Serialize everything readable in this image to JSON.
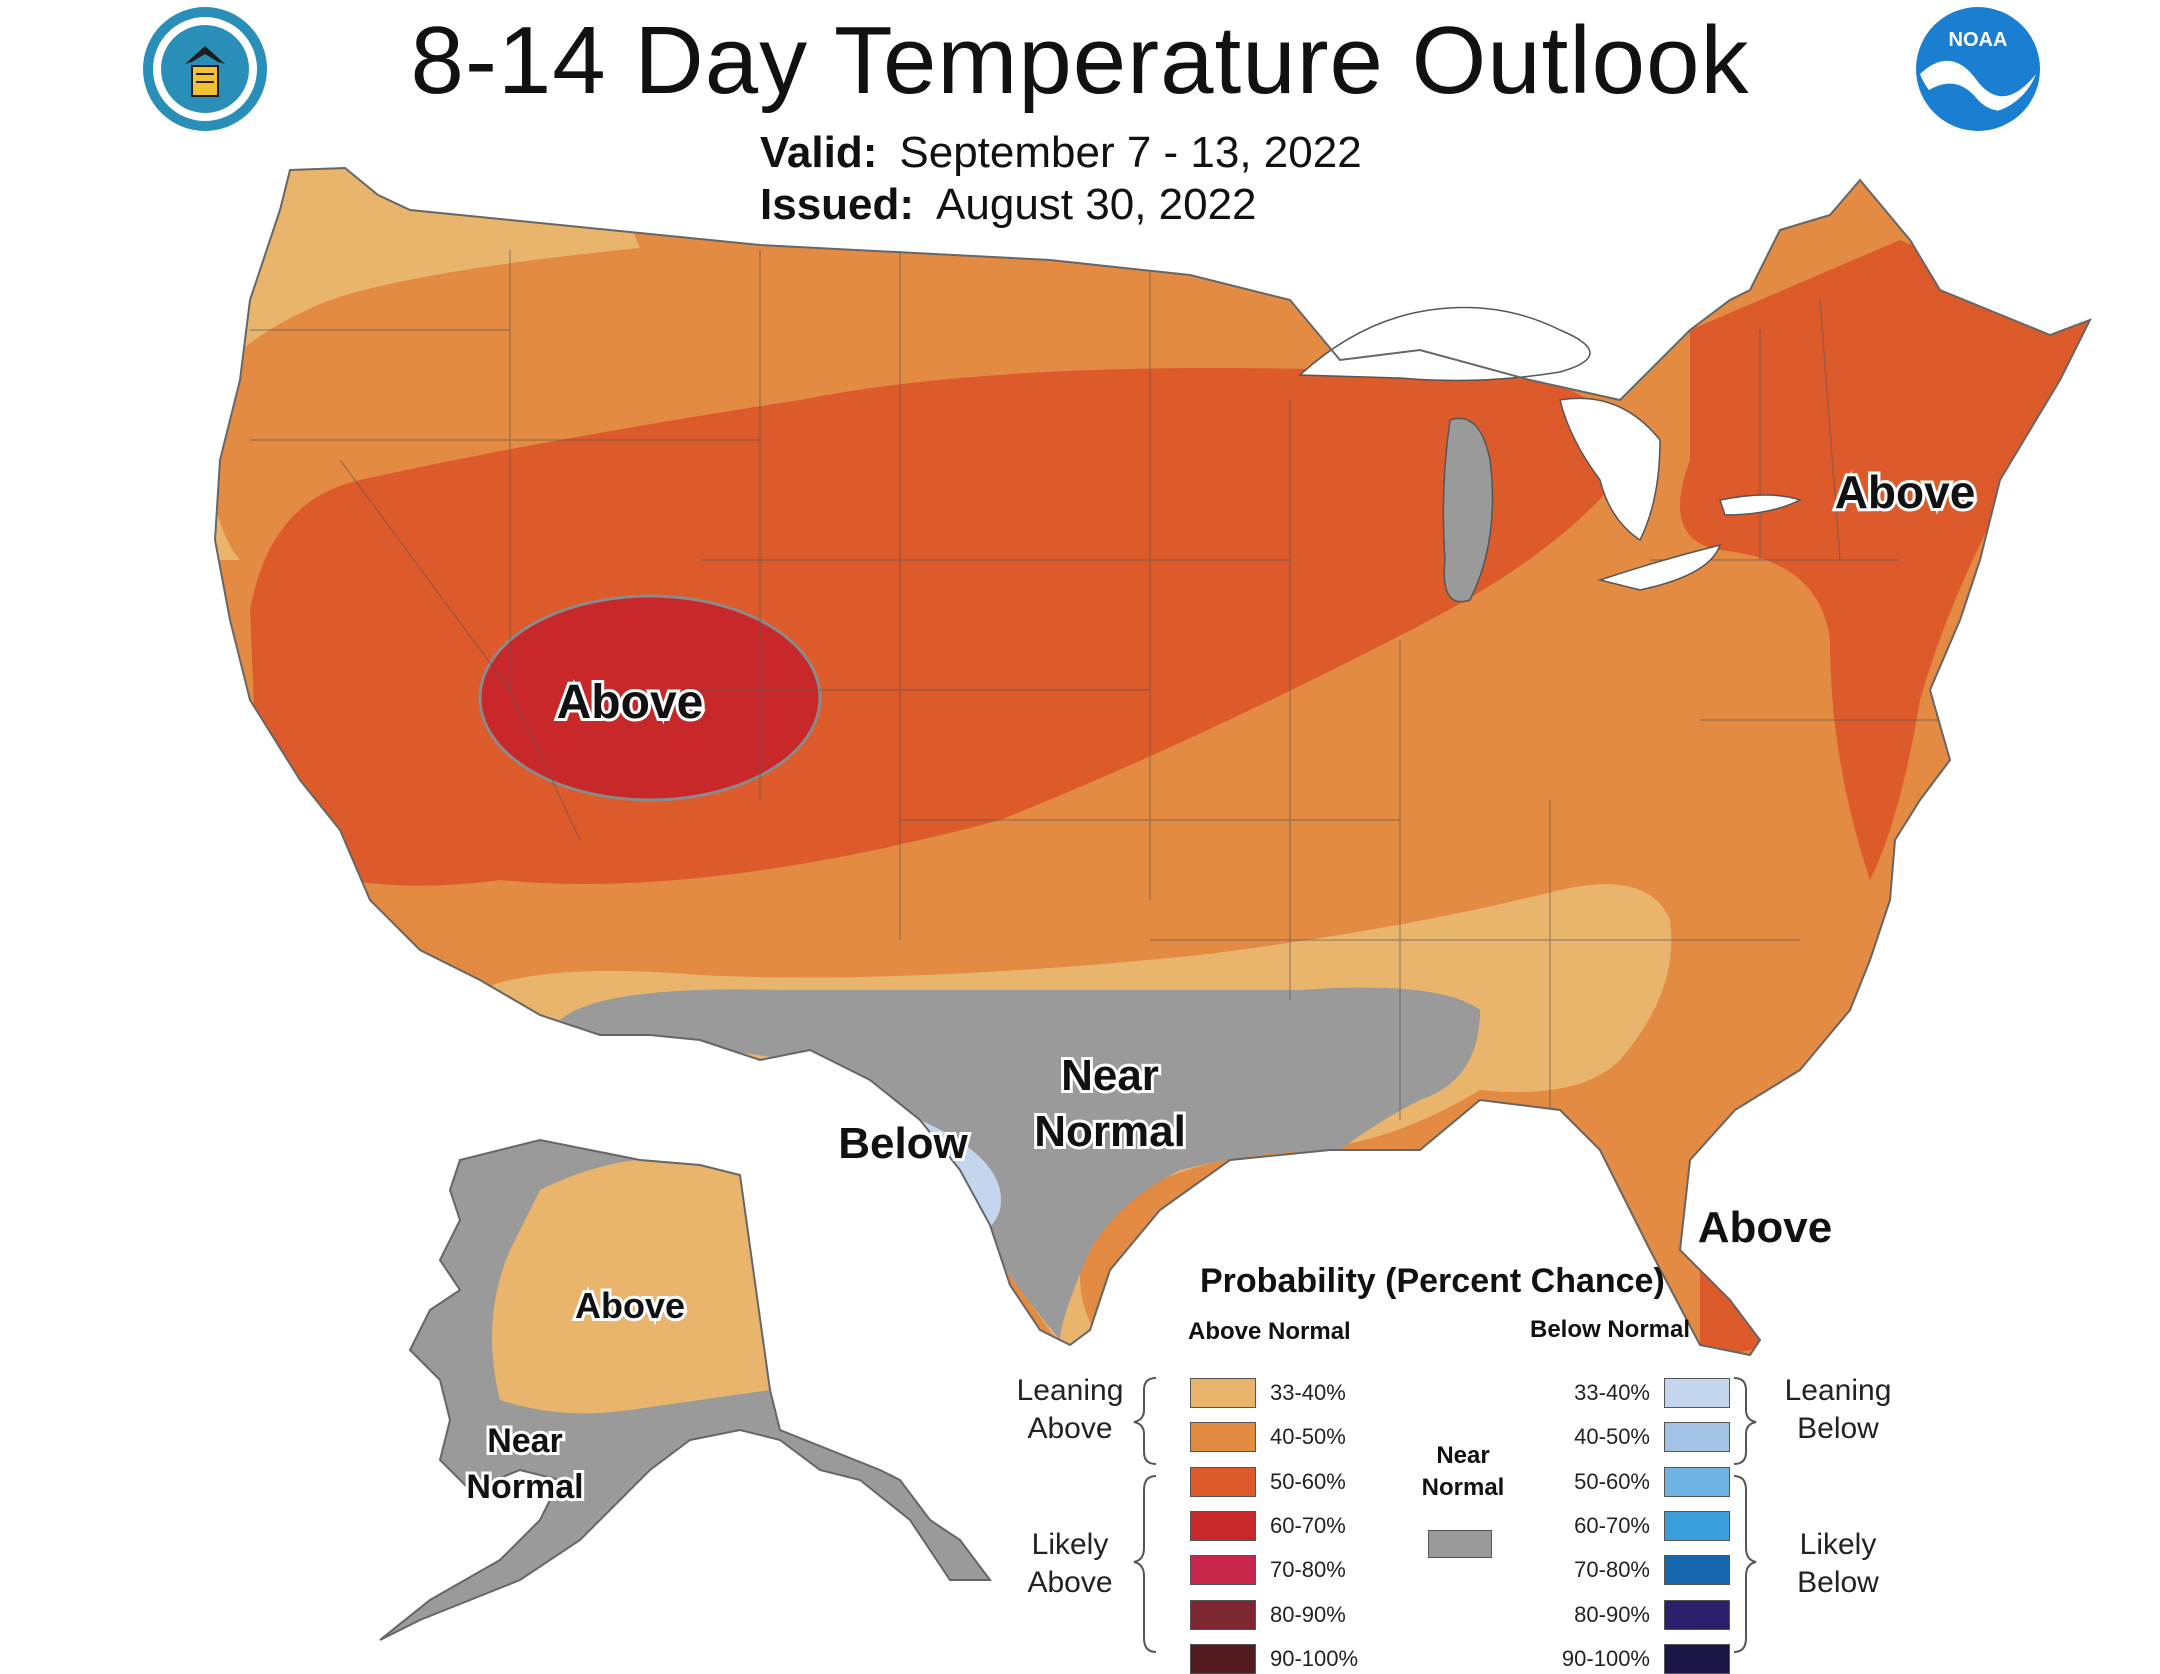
{
  "header": {
    "title": "8-14 Day Temperature Outlook",
    "valid_label": "Valid:",
    "valid_value": "September 7 - 13, 2022",
    "issued_label": "Issued:",
    "issued_value": "August 30, 2022",
    "logo_left": "doc-seal-icon",
    "logo_right": "noaa-logo-icon",
    "noaa_text": "NOAA"
  },
  "map": {
    "labels": {
      "great_basin": "Above",
      "northeast": "Above",
      "florida": "Above",
      "texas_below": "Below",
      "near_normal_1": "Near",
      "near_normal_2": "Normal",
      "alaska_above": "Above",
      "alaska_near_1": "Near",
      "alaska_near_2": "Normal"
    }
  },
  "legend": {
    "title": "Probability (Percent Chance)",
    "above_header": "Above Normal",
    "below_header": "Below Normal",
    "near_header_1": "Near",
    "near_header_2": "Normal",
    "leaning_above_1": "Leaning",
    "leaning_above_2": "Above",
    "likely_above_1": "Likely",
    "likely_above_2": "Above",
    "leaning_below_1": "Leaning",
    "leaning_below_2": "Below",
    "likely_below_1": "Likely",
    "likely_below_2": "Below",
    "above": [
      {
        "label": "33-40%",
        "color": "#e9b46c"
      },
      {
        "label": "40-50%",
        "color": "#e38a43"
      },
      {
        "label": "50-60%",
        "color": "#dd5a2b"
      },
      {
        "label": "60-70%",
        "color": "#c8282a"
      },
      {
        "label": "70-80%",
        "color": "#c7264a"
      },
      {
        "label": "80-90%",
        "color": "#7e2630"
      },
      {
        "label": "90-100%",
        "color": "#521a1e"
      }
    ],
    "below": [
      {
        "label": "33-40%",
        "color": "#c4d6ee"
      },
      {
        "label": "40-50%",
        "color": "#a2c3e6"
      },
      {
        "label": "50-60%",
        "color": "#6fb2e4"
      },
      {
        "label": "60-70%",
        "color": "#3b9fdc"
      },
      {
        "label": "70-80%",
        "color": "#1767ae"
      },
      {
        "label": "80-90%",
        "color": "#2c1f6b"
      },
      {
        "label": "90-100%",
        "color": "#1b1446"
      }
    ],
    "near_color": "#9a9a9a"
  }
}
